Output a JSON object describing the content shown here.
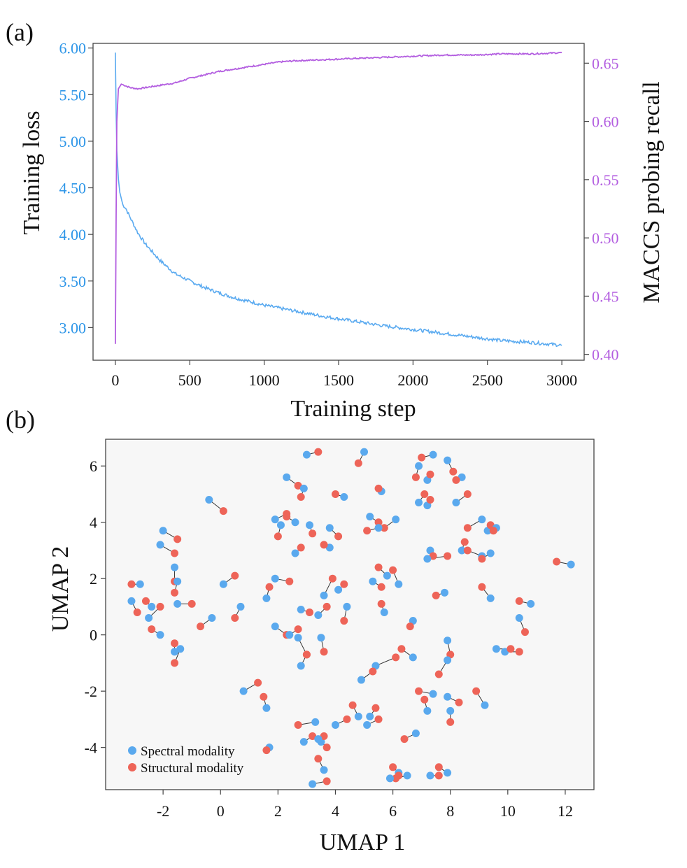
{
  "chart_data": [
    {
      "panel": "(a)",
      "type": "line",
      "xlabel": "Training step",
      "ylabel_left": "Training loss",
      "ylabel_right": "MACCS probing recall",
      "xlim": [
        -150,
        3150
      ],
      "ylim_left": [
        2.65,
        6.05
      ],
      "ylim_right": [
        0.395,
        0.667
      ],
      "xticks": [
        0,
        500,
        1000,
        1500,
        2000,
        2500,
        3000
      ],
      "xtick_labels": [
        "0",
        "500",
        "1000",
        "1500",
        "2000",
        "2500",
        "3000"
      ],
      "yticks_left": [
        3.0,
        3.5,
        4.0,
        4.5,
        5.0,
        5.5,
        6.0
      ],
      "ytick_labels_left": [
        "3.00",
        "3.50",
        "4.00",
        "4.50",
        "5.00",
        "5.50",
        "6.00"
      ],
      "yticks_right": [
        0.4,
        0.45,
        0.5,
        0.55,
        0.6,
        0.65
      ],
      "ytick_labels_right": [
        "0.40",
        "0.45",
        "0.50",
        "0.55",
        "0.60",
        "0.65"
      ],
      "grid": false,
      "colors": {
        "loss": "#5aaaf0",
        "recall": "#b35ee0",
        "left_axis_text": "#2e96e8",
        "right_axis_text": "#b35ee0"
      },
      "series": [
        {
          "axis": "left",
          "x": [
            0,
            5,
            10,
            20,
            30,
            50,
            70,
            100,
            150,
            200,
            300,
            400,
            500,
            600,
            700,
            800,
            900,
            1000,
            1200,
            1400,
            1600,
            1800,
            2000,
            2200,
            2400,
            2600,
            2800,
            3000
          ],
          "values": [
            5.95,
            5.3,
            4.9,
            4.6,
            4.45,
            4.32,
            4.28,
            4.18,
            4.02,
            3.9,
            3.72,
            3.58,
            3.5,
            3.43,
            3.37,
            3.32,
            3.28,
            3.24,
            3.18,
            3.12,
            3.07,
            3.02,
            2.98,
            2.94,
            2.9,
            2.86,
            2.84,
            2.81
          ]
        },
        {
          "axis": "right",
          "x": [
            0,
            5,
            10,
            20,
            40,
            60,
            100,
            150,
            200,
            300,
            400,
            500,
            600,
            700,
            800,
            900,
            1000,
            1100,
            1200,
            1400,
            1600,
            1800,
            2000,
            2200,
            2400,
            2600,
            2800,
            3000
          ],
          "values": [
            0.409,
            0.52,
            0.6,
            0.628,
            0.632,
            0.631,
            0.629,
            0.628,
            0.629,
            0.631,
            0.633,
            0.637,
            0.64,
            0.643,
            0.645,
            0.647,
            0.649,
            0.651,
            0.652,
            0.653,
            0.654,
            0.655,
            0.656,
            0.657,
            0.657,
            0.658,
            0.658,
            0.659
          ]
        }
      ]
    },
    {
      "panel": "(b)",
      "type": "scatter",
      "xlabel": "UMAP 1",
      "ylabel": "UMAP 2",
      "xlim": [
        -4,
        13
      ],
      "ylim": [
        -5.5,
        6.95
      ],
      "xticks": [
        -2,
        0,
        2,
        4,
        6,
        8,
        10,
        12
      ],
      "xtick_labels": [
        "-2",
        "0",
        "2",
        "4",
        "6",
        "8",
        "10",
        "12"
      ],
      "yticks": [
        -4,
        -2,
        0,
        2,
        4,
        6
      ],
      "ytick_labels": [
        "-4",
        "-2",
        "0",
        "2",
        "4",
        "6"
      ],
      "grid": false,
      "legend": {
        "placement": "bottom-left",
        "entries": [
          "Spectral modality",
          "Structural modality"
        ]
      },
      "colors": {
        "spectral": "#5aa9ee",
        "structural": "#ee6458",
        "link": "#333333"
      },
      "pairs": [
        [
          [
            3.0,
            6.4
          ],
          [
            3.4,
            6.5
          ]
        ],
        [
          [
            5.0,
            6.5
          ],
          [
            4.8,
            6.1
          ]
        ],
        [
          [
            7.4,
            6.4
          ],
          [
            7.0,
            6.3
          ]
        ],
        [
          [
            7.9,
            6.2
          ],
          [
            8.1,
            5.8
          ]
        ],
        [
          [
            7.2,
            5.5
          ],
          [
            7.3,
            5.7
          ]
        ],
        [
          [
            8.4,
            5.6
          ],
          [
            8.2,
            5.5
          ]
        ],
        [
          [
            6.9,
            6.0
          ],
          [
            6.8,
            5.6
          ]
        ],
        [
          [
            2.3,
            5.6
          ],
          [
            2.7,
            5.3
          ]
        ],
        [
          [
            2.9,
            5.2
          ],
          [
            2.8,
            4.9
          ]
        ],
        [
          [
            4.3,
            4.9
          ],
          [
            4.0,
            5.0
          ]
        ],
        [
          [
            5.6,
            5.1
          ],
          [
            5.5,
            5.2
          ]
        ],
        [
          [
            8.2,
            4.7
          ],
          [
            8.6,
            5.0
          ]
        ],
        [
          [
            6.9,
            4.7
          ],
          [
            7.1,
            5.0
          ]
        ],
        [
          [
            7.2,
            4.6
          ],
          [
            7.3,
            4.8
          ]
        ],
        [
          [
            -0.4,
            4.8
          ],
          [
            0.1,
            4.4
          ]
        ],
        [
          [
            1.9,
            4.1
          ],
          [
            2.3,
            4.3
          ]
        ],
        [
          [
            2.1,
            3.9
          ],
          [
            2.0,
            3.5
          ]
        ],
        [
          [
            2.6,
            4.0
          ],
          [
            2.3,
            4.2
          ]
        ],
        [
          [
            3.1,
            3.9
          ],
          [
            3.2,
            3.6
          ]
        ],
        [
          [
            3.8,
            3.8
          ],
          [
            4.1,
            3.5
          ]
        ],
        [
          [
            5.2,
            4.2
          ],
          [
            5.5,
            4.0
          ]
        ],
        [
          [
            6.1,
            4.1
          ],
          [
            5.7,
            3.8
          ]
        ],
        [
          [
            5.5,
            3.8
          ],
          [
            5.1,
            3.7
          ]
        ],
        [
          [
            9.1,
            4.1
          ],
          [
            8.6,
            3.8
          ]
        ],
        [
          [
            9.3,
            3.7
          ],
          [
            9.4,
            3.9
          ]
        ],
        [
          [
            9.6,
            3.8
          ],
          [
            9.5,
            3.7
          ]
        ],
        [
          [
            8.4,
            3.0
          ],
          [
            8.5,
            3.3
          ]
        ],
        [
          [
            7.3,
            3.0
          ],
          [
            7.4,
            2.8
          ]
        ],
        [
          [
            7.2,
            2.7
          ],
          [
            7.9,
            2.8
          ]
        ],
        [
          [
            9.1,
            2.8
          ],
          [
            8.6,
            3.0
          ]
        ],
        [
          [
            9.4,
            2.9
          ],
          [
            9.1,
            2.7
          ]
        ],
        [
          [
            -2.0,
            3.7
          ],
          [
            -1.5,
            3.4
          ]
        ],
        [
          [
            -2.1,
            3.2
          ],
          [
            -1.6,
            2.9
          ]
        ],
        [
          [
            2.6,
            2.9
          ],
          [
            2.8,
            3.1
          ]
        ],
        [
          [
            3.8,
            3.1
          ],
          [
            3.6,
            3.2
          ]
        ],
        [
          [
            12.2,
            2.5
          ],
          [
            11.7,
            2.6
          ]
        ],
        [
          [
            -1.6,
            2.4
          ],
          [
            -1.6,
            1.9
          ]
        ],
        [
          [
            -1.5,
            1.9
          ],
          [
            -1.6,
            1.5
          ]
        ],
        [
          [
            -2.8,
            1.8
          ],
          [
            -3.1,
            1.8
          ]
        ],
        [
          [
            0.1,
            1.8
          ],
          [
            0.5,
            2.1
          ]
        ],
        [
          [
            1.9,
            2.0
          ],
          [
            2.4,
            1.9
          ]
        ],
        [
          [
            1.6,
            1.3
          ],
          [
            1.7,
            1.7
          ]
        ],
        [
          [
            3.6,
            1.4
          ],
          [
            3.9,
            2.0
          ]
        ],
        [
          [
            4.1,
            1.6
          ],
          [
            4.3,
            1.8
          ]
        ],
        [
          [
            5.3,
            1.9
          ],
          [
            5.6,
            1.7
          ]
        ],
        [
          [
            5.8,
            2.1
          ],
          [
            5.5,
            2.4
          ]
        ],
        [
          [
            6.2,
            1.8
          ],
          [
            6.0,
            2.3
          ]
        ],
        [
          [
            7.8,
            1.5
          ],
          [
            7.5,
            1.4
          ]
        ],
        [
          [
            9.4,
            1.3
          ],
          [
            9.1,
            1.7
          ]
        ],
        [
          [
            10.8,
            1.1
          ],
          [
            10.4,
            1.2
          ]
        ],
        [
          [
            -3.1,
            1.2
          ],
          [
            -2.9,
            0.8
          ]
        ],
        [
          [
            -2.4,
            1.0
          ],
          [
            -2.6,
            1.2
          ]
        ],
        [
          [
            -1.5,
            1.1
          ],
          [
            -1.0,
            1.1
          ]
        ],
        [
          [
            -2.5,
            0.6
          ],
          [
            -2.1,
            1.0
          ]
        ],
        [
          [
            0.7,
            1.0
          ],
          [
            0.5,
            0.6
          ]
        ],
        [
          [
            -0.3,
            0.6
          ],
          [
            -0.7,
            0.3
          ]
        ],
        [
          [
            2.8,
            0.9
          ],
          [
            3.1,
            0.8
          ]
        ],
        [
          [
            3.4,
            0.7
          ],
          [
            3.7,
            1.0
          ]
        ],
        [
          [
            4.4,
            1.0
          ],
          [
            4.3,
            0.5
          ]
        ],
        [
          [
            5.7,
            0.8
          ],
          [
            5.6,
            1.1
          ]
        ],
        [
          [
            6.7,
            0.5
          ],
          [
            6.6,
            0.3
          ]
        ],
        [
          [
            10.4,
            0.6
          ],
          [
            10.6,
            0.1
          ]
        ],
        [
          [
            1.9,
            0.3
          ],
          [
            2.3,
            0.0
          ]
        ],
        [
          [
            2.4,
            0.0
          ],
          [
            2.7,
            0.2
          ]
        ],
        [
          [
            -2.1,
            0.0
          ],
          [
            -2.4,
            0.2
          ]
        ],
        [
          [
            2.7,
            -0.1
          ],
          [
            3.0,
            -0.7
          ]
        ],
        [
          [
            3.5,
            -0.1
          ],
          [
            3.6,
            -0.6
          ]
        ],
        [
          [
            2.8,
            -1.1
          ],
          [
            3.0,
            -0.7
          ]
        ],
        [
          [
            -1.6,
            -0.6
          ],
          [
            -1.6,
            -0.3
          ]
        ],
        [
          [
            -1.4,
            -0.5
          ],
          [
            -1.6,
            -1.0
          ]
        ],
        [
          [
            6.7,
            -0.8
          ],
          [
            6.3,
            -0.5
          ]
        ],
        [
          [
            7.9,
            -0.2
          ],
          [
            8.0,
            -0.7
          ]
        ],
        [
          [
            7.9,
            -0.9
          ],
          [
            7.6,
            -1.4
          ]
        ],
        [
          [
            9.9,
            -0.6
          ],
          [
            10.4,
            -0.6
          ]
        ],
        [
          [
            9.6,
            -0.5
          ],
          [
            10.1,
            -0.5
          ]
        ],
        [
          [
            5.4,
            -1.1
          ],
          [
            6.1,
            -0.8
          ]
        ],
        [
          [
            4.9,
            -1.6
          ],
          [
            5.3,
            -1.3
          ]
        ],
        [
          [
            0.8,
            -2.0
          ],
          [
            1.3,
            -1.7
          ]
        ],
        [
          [
            1.6,
            -2.6
          ],
          [
            1.5,
            -2.2
          ]
        ],
        [
          [
            7.4,
            -2.1
          ],
          [
            6.9,
            -2.0
          ]
        ],
        [
          [
            7.2,
            -2.7
          ],
          [
            7.1,
            -2.3
          ]
        ],
        [
          [
            7.9,
            -2.2
          ],
          [
            8.3,
            -2.4
          ]
        ],
        [
          [
            9.2,
            -2.5
          ],
          [
            8.9,
            -2.0
          ]
        ],
        [
          [
            8.0,
            -2.7
          ],
          [
            8.0,
            -3.1
          ]
        ],
        [
          [
            4.0,
            -3.2
          ],
          [
            4.4,
            -3.0
          ]
        ],
        [
          [
            4.8,
            -2.9
          ],
          [
            4.6,
            -2.5
          ]
        ],
        [
          [
            5.2,
            -2.9
          ],
          [
            5.4,
            -2.6
          ]
        ],
        [
          [
            5.1,
            -3.2
          ],
          [
            5.5,
            -3.0
          ]
        ],
        [
          [
            3.3,
            -3.1
          ],
          [
            2.7,
            -3.2
          ]
        ],
        [
          [
            2.9,
            -3.8
          ],
          [
            3.2,
            -3.6
          ]
        ],
        [
          [
            3.5,
            -3.8
          ],
          [
            3.6,
            -3.6
          ]
        ],
        [
          [
            3.4,
            -3.7
          ],
          [
            3.7,
            -4.0
          ]
        ],
        [
          [
            6.8,
            -3.5
          ],
          [
            6.4,
            -3.7
          ]
        ],
        [
          [
            1.7,
            -4.0
          ],
          [
            1.6,
            -4.1
          ]
        ],
        [
          [
            3.6,
            -4.8
          ],
          [
            3.4,
            -4.4
          ]
        ],
        [
          [
            6.2,
            -4.9
          ],
          [
            6.0,
            -4.7
          ]
        ],
        [
          [
            6.5,
            -5.0
          ],
          [
            6.1,
            -5.1
          ]
        ],
        [
          [
            5.9,
            -5.1
          ],
          [
            6.2,
            -5.0
          ]
        ],
        [
          [
            7.3,
            -5.0
          ],
          [
            7.6,
            -5.0
          ]
        ],
        [
          [
            7.9,
            -4.9
          ],
          [
            7.6,
            -4.7
          ]
        ],
        [
          [
            3.2,
            -5.3
          ],
          [
            3.7,
            -5.2
          ]
        ]
      ]
    }
  ]
}
